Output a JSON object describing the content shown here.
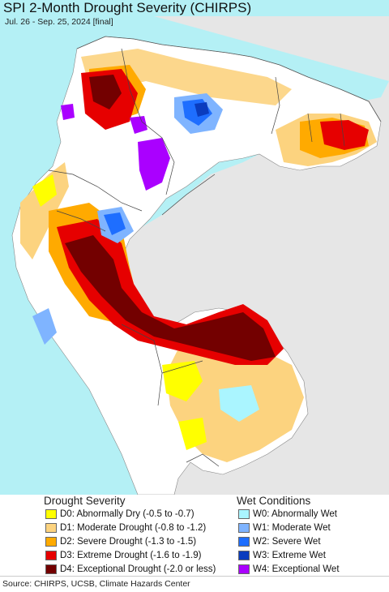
{
  "header": {
    "title": "SPI 2-Month Drought Severity (CHIRPS)",
    "subtitle": "Jul. 26 - Sep. 25, 2024 [final]"
  },
  "legend": {
    "drought_title": "Drought Severity",
    "wet_title": "Wet Conditions",
    "drought_items": [
      {
        "label": "D0: Abnormally Dry (-0.5 to -0.7)",
        "color": "#ffff00"
      },
      {
        "label": "D1: Moderate Drought (-0.8 to -1.2)",
        "color": "#fcd37f"
      },
      {
        "label": "D2: Severe Drought (-1.3 to -1.5)",
        "color": "#ffaa00"
      },
      {
        "label": "D3: Extreme Drought (-1.6 to -1.9)",
        "color": "#e60000"
      },
      {
        "label": "D4: Exceptional Drought (-2.0 or less)",
        "color": "#730000"
      }
    ],
    "wet_items": [
      {
        "label": "W0: Abnormally Wet",
        "color": "#aaf5ff"
      },
      {
        "label": "W1: Moderate Wet",
        "color": "#7fb4ff"
      },
      {
        "label": "W2: Severe Wet",
        "color": "#1e6eff"
      },
      {
        "label": "W3: Extreme Wet",
        "color": "#0a3cbe"
      },
      {
        "label": "W4: Exceptional Wet",
        "color": "#aa00ff"
      }
    ]
  },
  "footer": {
    "source": "Source: CHIRPS, UCSB, Climate Hazards Center"
  },
  "map": {
    "ocean_color": "#b4f0f5",
    "no_data_color": "#e6e6e6",
    "normal_color": "#ffffff"
  }
}
